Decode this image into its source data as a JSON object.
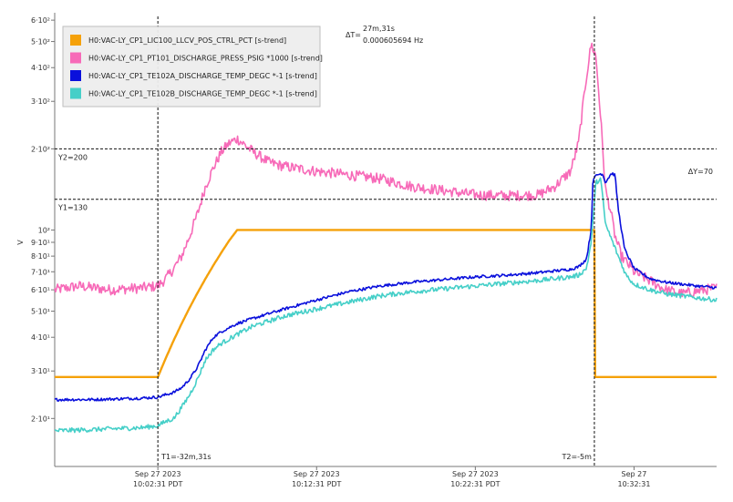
{
  "chart_data": {
    "type": "line",
    "ylabel": "V",
    "y_scale": "log",
    "ylim": [
      16,
      610
    ],
    "x_axis": "time (minutes relative to 10:02:31 PDT)",
    "xlim": [
      -6.5,
      35.2
    ],
    "x_ticks": [
      {
        "x": 0,
        "line1": "Sep 27 2023",
        "line2": "10:02:31 PDT"
      },
      {
        "x": 10,
        "line1": "Sep 27 2023",
        "line2": "10:12:31 PDT"
      },
      {
        "x": 20,
        "line1": "Sep 27 2023",
        "line2": "10:22:31 PDT"
      },
      {
        "x": 30,
        "line1": "Sep 27",
        "line2": "10:32:31"
      }
    ],
    "y_ticks": [
      {
        "value": 20,
        "label": "2·10¹"
      },
      {
        "value": 30,
        "label": "3·10¹"
      },
      {
        "value": 40,
        "label": "4·10¹"
      },
      {
        "value": 50,
        "label": "5·10¹"
      },
      {
        "value": 60,
        "label": "6·10¹"
      },
      {
        "value": 70,
        "label": "7·10¹"
      },
      {
        "value": 80,
        "label": "8·10¹"
      },
      {
        "value": 90,
        "label": "9·10¹"
      },
      {
        "value": 100,
        "label": "10²"
      },
      {
        "value": 200,
        "label": "2·10²"
      },
      {
        "value": 300,
        "label": "3·10²"
      },
      {
        "value": 400,
        "label": "4·10²"
      },
      {
        "value": 500,
        "label": "5·10²"
      },
      {
        "value": 600,
        "label": "6·10²"
      }
    ],
    "grid": false,
    "legend_position": "top-left",
    "cursors": {
      "t1": {
        "x": 0,
        "label": "T1=-32m,31s"
      },
      "t2": {
        "x": 27.5,
        "label": "T2=-5m"
      },
      "y1": {
        "value": 130,
        "label": "Y1=130"
      },
      "y2": {
        "value": 200,
        "label": "Y2=200"
      },
      "delta_t_label": "ΔT=",
      "delta_t_value": "27m,31s",
      "delta_t_freq": "0.000605694 Hz",
      "delta_y": "ΔY=70"
    },
    "series": [
      {
        "name": "H0:VAC-LY_CP1_LIC100_LLCV_POS_CTRL_PCT [s-trend]",
        "color": "#f5a10a",
        "noise": 0,
        "x": [
          -6.5,
          0,
          0.5,
          1,
          1.5,
          2,
          2.5,
          3,
          3.5,
          4,
          4.5,
          5,
          27.5,
          27.55,
          35.2
        ],
        "y": [
          28.5,
          28.5,
          33.5,
          39,
          45,
          51.5,
          58.5,
          66,
          74,
          82.5,
          91.5,
          100,
          100,
          28.5,
          28.5
        ]
      },
      {
        "name": "H0:VAC-LY_CP1_PT101_DISCHARGE_PRESS_PSIG *1000 [s-trend]",
        "color": "#f76ab8",
        "noise": 0.045,
        "x": [
          -6.5,
          -5,
          -3,
          -1,
          0,
          0.5,
          1,
          1.5,
          2,
          2.5,
          3,
          3.5,
          4,
          4.5,
          5,
          6,
          7,
          8,
          10,
          12,
          14,
          16,
          18,
          20,
          22,
          24,
          25,
          26,
          26.5,
          27,
          27.3,
          27.6,
          27.9,
          28.2,
          28.5,
          28.8,
          29.2,
          30,
          32,
          33,
          35.2
        ],
        "y": [
          60,
          62,
          60,
          61,
          62,
          66,
          72,
          80,
          95,
          115,
          145,
          170,
          195,
          210,
          218,
          195,
          178,
          172,
          165,
          160,
          155,
          145,
          140,
          135,
          134,
          135,
          145,
          165,
          210,
          370,
          490,
          440,
          260,
          140,
          120,
          95,
          80,
          70,
          60,
          58,
          61
        ]
      },
      {
        "name": "H0:VAC-LY_CP1_TE102A_DISCHARGE_TEMP_DEGC *-1 [s-trend]",
        "color": "#0a10dc",
        "noise": 0.012,
        "x": [
          -6.5,
          -4,
          -1,
          0,
          0.5,
          1,
          1.5,
          2,
          2.5,
          3,
          3.5,
          4,
          5,
          6,
          8,
          10,
          12,
          14,
          16,
          18,
          20,
          22,
          24,
          25,
          26,
          26.5,
          27,
          27.3,
          27.4,
          27.6,
          28,
          28.2,
          28.5,
          28.6,
          28.8,
          29,
          29.4,
          30,
          31,
          32,
          33,
          34,
          35.2
        ],
        "y": [
          23.5,
          23.5,
          23.8,
          24,
          24.5,
          25,
          26,
          28,
          31,
          36,
          40,
          42,
          45,
          47,
          51,
          55,
          59,
          62,
          64,
          65.5,
          67,
          68,
          69.5,
          70.5,
          71.5,
          73,
          78,
          100,
          150,
          160,
          162,
          150,
          160,
          162,
          160,
          120,
          85,
          72,
          66,
          64,
          63,
          62,
          61
        ]
      },
      {
        "name": "H0:VAC-LY_CP1_TE102B_DISCHARGE_TEMP_DEGC *-1 [s-trend]",
        "color": "#45cfc8",
        "noise": 0.02,
        "x": [
          -6.5,
          -4,
          -1,
          0,
          0.5,
          1,
          1.5,
          2,
          2.5,
          3,
          3.5,
          4,
          5,
          6,
          8,
          10,
          12,
          14,
          16,
          18,
          20,
          22,
          24,
          25,
          26,
          26.5,
          27,
          27.3,
          27.6,
          27.9,
          28.2,
          28.5,
          29,
          29.5,
          30,
          31,
          32,
          33,
          34,
          35.2
        ],
        "y": [
          18,
          18.2,
          18.5,
          18.8,
          19.5,
          20,
          22,
          24.5,
          28,
          33,
          36,
          38,
          41,
          44,
          48,
          51,
          54,
          57,
          59,
          60.5,
          62,
          63.5,
          65,
          66,
          67,
          68,
          72,
          90,
          150,
          155,
          105,
          95,
          80,
          68,
          63,
          60,
          58,
          57,
          56,
          55
        ]
      }
    ]
  }
}
